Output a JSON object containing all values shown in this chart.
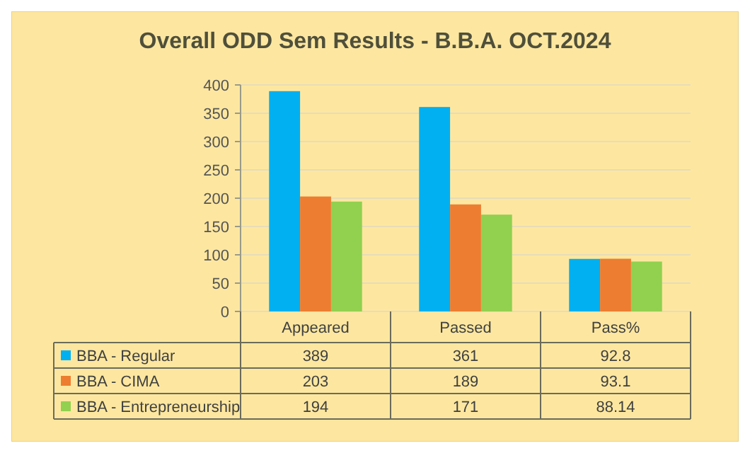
{
  "chart_data": {
    "type": "bar",
    "title": "Overall ODD Sem Results - B.B.A. OCT.2024",
    "categories": [
      "Appeared",
      "Passed",
      "Pass%"
    ],
    "series": [
      {
        "name": "BBA - Regular",
        "color": "#00b0f0",
        "values": [
          389,
          361,
          92.8
        ]
      },
      {
        "name": "BBA - CIMA",
        "color": "#ed7d31",
        "values": [
          203,
          189,
          93.1
        ]
      },
      {
        "name": "BBA - Entrepreneurship",
        "color": "#92d050",
        "values": [
          194,
          171,
          88.14
        ]
      }
    ],
    "ylim": [
      0,
      400
    ],
    "yticks": [
      0,
      50,
      100,
      150,
      200,
      250,
      300,
      350,
      400
    ],
    "grid": "y",
    "legend": "bottom",
    "data_labels": true
  }
}
